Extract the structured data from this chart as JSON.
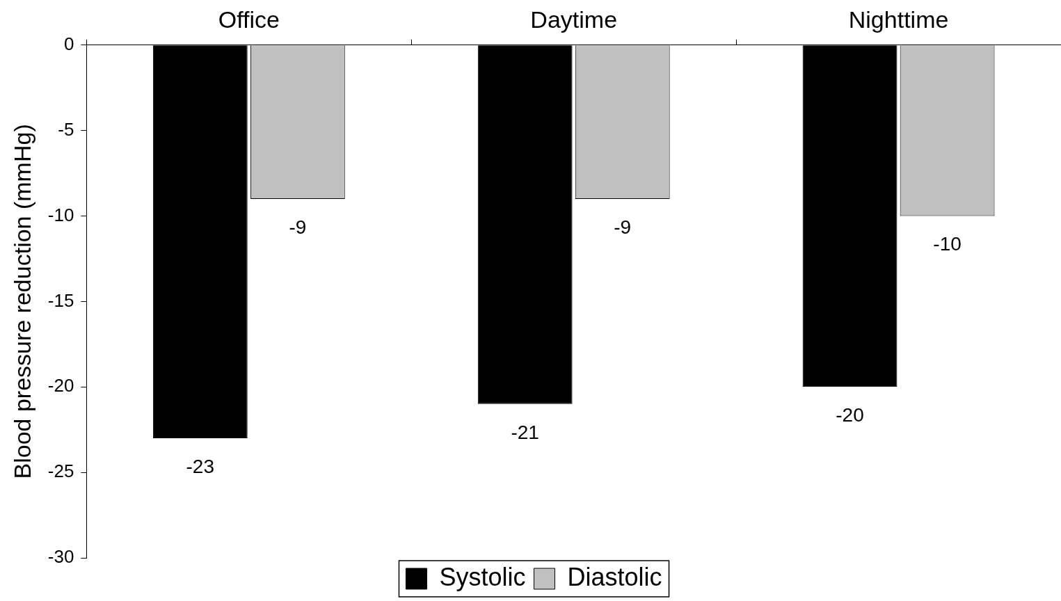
{
  "chart_data": {
    "type": "bar",
    "ylabel": "Blood pressure reduction (mmHg)",
    "categories": [
      "Office",
      "Daytime",
      "Nighttime"
    ],
    "series": [
      {
        "name": "Systolic",
        "color": "#000000",
        "values": [
          -23,
          -21,
          -20
        ]
      },
      {
        "name": "Diastolic",
        "color": "#c0c0c0",
        "values": [
          -9,
          -9,
          -10
        ]
      }
    ],
    "ylim": [
      -30,
      0
    ],
    "yticks": [
      -30,
      -25,
      -20,
      -15,
      -10,
      -5,
      0
    ],
    "grid": false,
    "legend": "bottom",
    "data_labels": true
  }
}
